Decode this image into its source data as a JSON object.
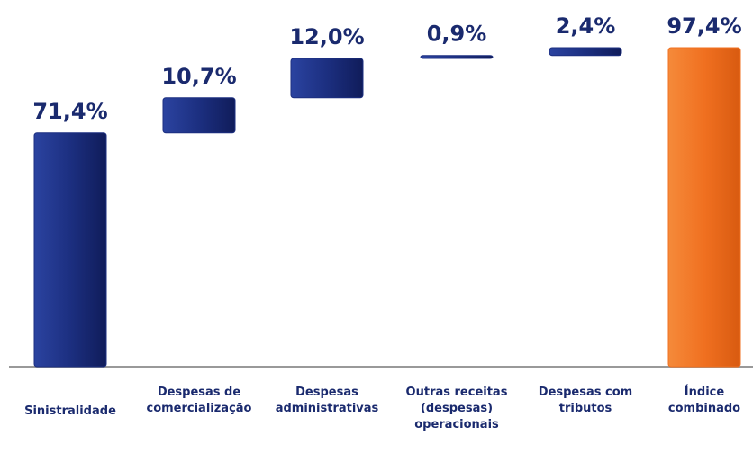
{
  "chart_data": {
    "type": "waterfall",
    "categories": [
      "Sinistralidade",
      "Despesas de\ncomercialização",
      "Despesas\nadministrativas",
      "Outras receitas\n(despesas)\noperacionais",
      "Despesas com\ntributos",
      "Índice\ncombinado"
    ],
    "values": [
      71.4,
      10.7,
      12.0,
      0.9,
      2.4,
      97.4
    ],
    "value_labels": [
      "71,4%",
      "10,7%",
      "12,0%",
      "0,9%",
      "2,4%",
      "97,4%"
    ],
    "total": [
      false,
      false,
      false,
      false,
      false,
      true
    ],
    "color": "#1c2f80",
    "total_color": "#f07020"
  }
}
